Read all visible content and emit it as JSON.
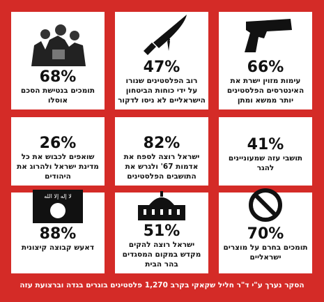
{
  "cards": [
    {
      "percent": "68%",
      "lines": [
        "תומכים בנטישת הסכם",
        "אוסלו"
      ]
    },
    {
      "percent": "47%",
      "lines": [
        "רוב הפלסטינים שנורו",
        "על ידי כוחות הביטחון",
        "הישראליים לא ניסו לדקור"
      ]
    },
    {
      "percent": "66%",
      "lines": [
        "עימות מזוין ישרת את",
        "האינטרסים הפלסטינים",
        "יותר ממשא ומתן"
      ]
    },
    {
      "percent": "26%",
      "lines": [
        "שואפים לכבוש את כל",
        "מדינת ישראל ולהרוג את",
        "היהודים"
      ]
    },
    {
      "percent": "82%",
      "lines": [
        "ישראל רוצה לספח את",
        "אדמות 67' ולגרש את",
        "התושבים הפלסטינים"
      ]
    },
    {
      "percent": "41%",
      "lines": [
        "תושבי עזה שמעוניינים",
        "להגר"
      ]
    },
    {
      "percent": "88%",
      "lines": [
        "דאעש קבוצה קיצונית"
      ],
      "flag_text": "لا إله إلا الله"
    },
    {
      "percent": "51%",
      "lines": [
        "ישראל רוצה להקים",
        "מקדש במקום המסגדים",
        "בהר הבית"
      ]
    },
    {
      "percent": "70%",
      "lines": [
        "תומכים בחרם על מוצרים",
        "ישראליים"
      ]
    }
  ],
  "footer": "הסקר נערך ע\"י ד\"ר חליל שקאקי בקרב 1,270 פלסטינים בוגרים בגדה וברצועת עזה"
}
